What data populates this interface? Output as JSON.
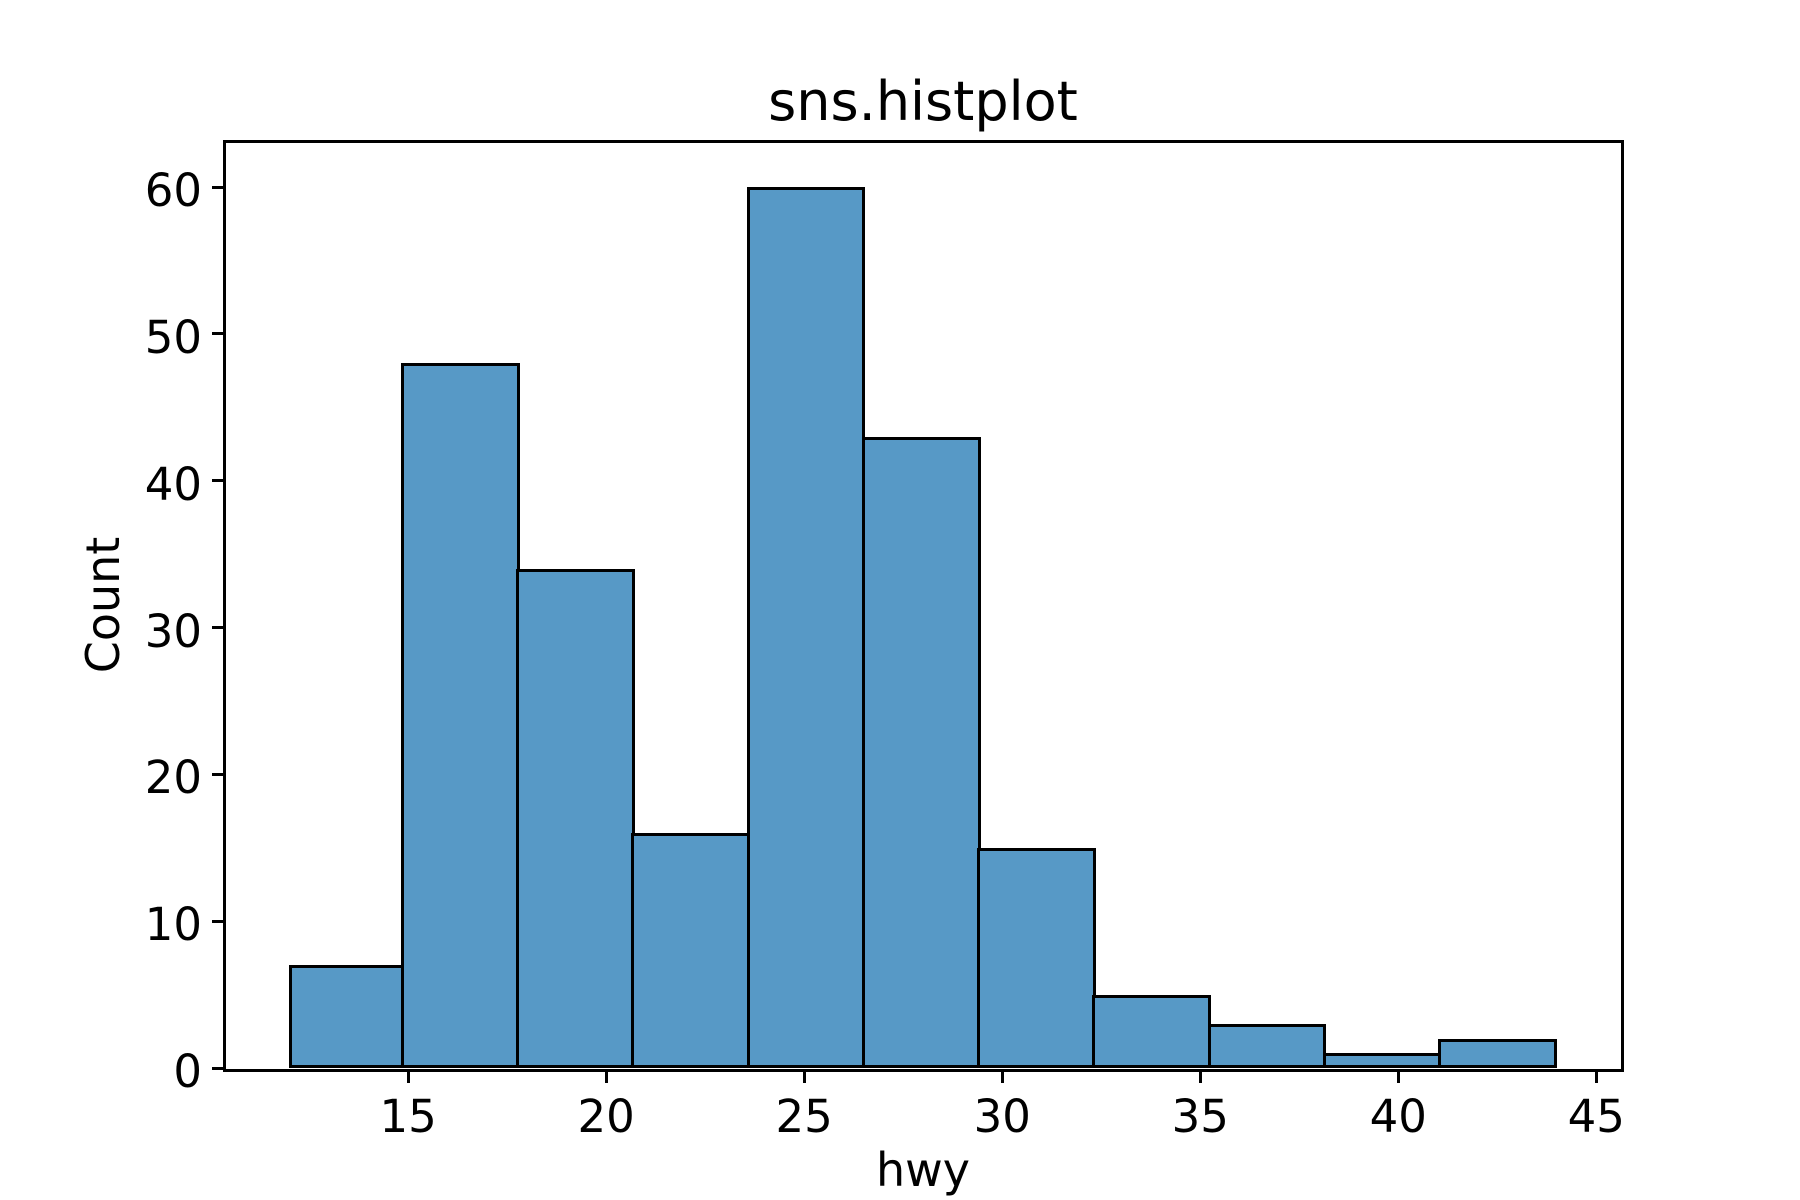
{
  "title": "sns.histplot",
  "chart_data": {
    "type": "bar",
    "subtype": "histogram",
    "title": "sns.histplot",
    "xlabel": "hwy",
    "ylabel": "Count",
    "bin_edges": [
      12.0,
      14.909,
      17.818,
      20.727,
      23.636,
      26.545,
      29.455,
      32.364,
      35.273,
      38.182,
      41.091,
      44.0
    ],
    "counts": [
      7,
      48,
      34,
      16,
      60,
      43,
      15,
      5,
      3,
      1,
      2
    ],
    "xticks": [
      15,
      20,
      25,
      30,
      35,
      40,
      45
    ],
    "yticks": [
      0,
      10,
      20,
      30,
      40,
      50,
      60
    ],
    "xlim": [
      10.4,
      45.6
    ],
    "ylim": [
      0,
      63
    ],
    "grid": false,
    "legend": false,
    "bar_fill": "#5799c6",
    "bar_edge": "#000000",
    "background": "#ffffff"
  }
}
